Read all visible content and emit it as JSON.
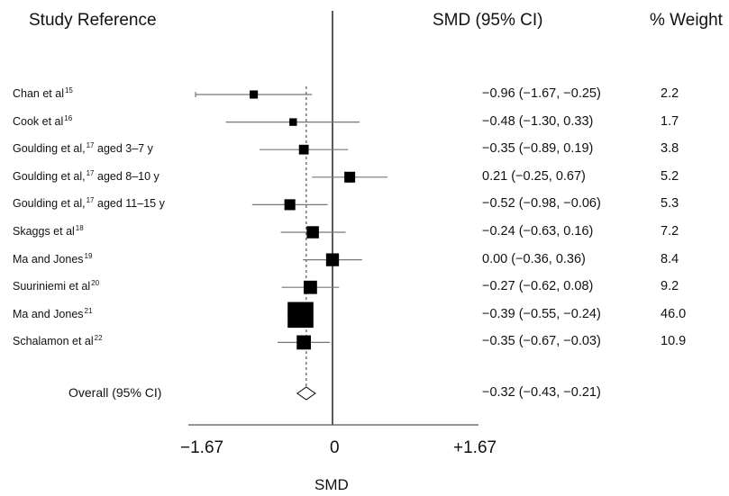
{
  "header": {
    "study": "Study Reference",
    "smd_ci": "SMD  (95% CI)",
    "weight": "% Weight"
  },
  "chart_data": {
    "type": "forest",
    "xlabel": "SMD",
    "xlim": [
      -1.67,
      1.67
    ],
    "ticks": [
      "−1.67",
      "0",
      "+1.67"
    ],
    "studies": [
      {
        "name": "Chan et al",
        "ref": "15",
        "suffix": "",
        "smd": -0.96,
        "lo": -1.67,
        "hi": -0.25,
        "ci_text": "−0.96 (−1.67, −0.25)",
        "weight": 2.2,
        "weight_text": "2.2"
      },
      {
        "name": "Cook et al",
        "ref": "16",
        "suffix": "",
        "smd": -0.48,
        "lo": -1.3,
        "hi": 0.33,
        "ci_text": "−0.48 (−1.30, 0.33)",
        "weight": 1.7,
        "weight_text": "1.7"
      },
      {
        "name": "Goulding et al,",
        "ref": "17",
        "suffix": " aged 3–7 y",
        "smd": -0.35,
        "lo": -0.89,
        "hi": 0.19,
        "ci_text": "−0.35 (−0.89, 0.19)",
        "weight": 3.8,
        "weight_text": "3.8"
      },
      {
        "name": "Goulding et al,",
        "ref": "17",
        "suffix": " aged 8–10 y",
        "smd": 0.21,
        "lo": -0.25,
        "hi": 0.67,
        "ci_text": "0.21 (−0.25, 0.67)",
        "weight": 5.2,
        "weight_text": "5.2"
      },
      {
        "name": "Goulding et al,",
        "ref": "17",
        "suffix": " aged 11–15 y",
        "smd": -0.52,
        "lo": -0.98,
        "hi": -0.06,
        "ci_text": "−0.52 (−0.98, −0.06)",
        "weight": 5.3,
        "weight_text": "5.3"
      },
      {
        "name": "Skaggs et al",
        "ref": "18",
        "suffix": "",
        "smd": -0.24,
        "lo": -0.63,
        "hi": 0.16,
        "ci_text": "−0.24 (−0.63, 0.16)",
        "weight": 7.2,
        "weight_text": "7.2"
      },
      {
        "name": "Ma and Jones",
        "ref": "19",
        "suffix": "",
        "smd": 0.0,
        "lo": -0.36,
        "hi": 0.36,
        "ci_text": "0.00 (−0.36, 0.36)",
        "weight": 8.4,
        "weight_text": "8.4"
      },
      {
        "name": "Suuriniemi et al",
        "ref": "20",
        "suffix": "",
        "smd": -0.27,
        "lo": -0.62,
        "hi": 0.08,
        "ci_text": "−0.27 (−0.62, 0.08)",
        "weight": 9.2,
        "weight_text": "9.2"
      },
      {
        "name": "Ma and Jones",
        "ref": "21",
        "suffix": "",
        "smd": -0.39,
        "lo": -0.55,
        "hi": -0.24,
        "ci_text": "−0.39 (−0.55, −0.24)",
        "weight": 46.0,
        "weight_text": "46.0"
      },
      {
        "name": "Schalamon et al",
        "ref": "22",
        "suffix": "",
        "smd": -0.35,
        "lo": -0.67,
        "hi": -0.03,
        "ci_text": "−0.35 (−0.67, −0.03)",
        "weight": 10.9,
        "weight_text": "10.9"
      }
    ],
    "overall": {
      "label": "Overall (95% CI)",
      "smd": -0.32,
      "lo": -0.43,
      "hi": -0.21,
      "ci_text": "−0.32 (−0.43, −0.21)"
    },
    "colors": {
      "ci_line": "#777777",
      "marker": "#000000",
      "axis": "#555555"
    }
  }
}
